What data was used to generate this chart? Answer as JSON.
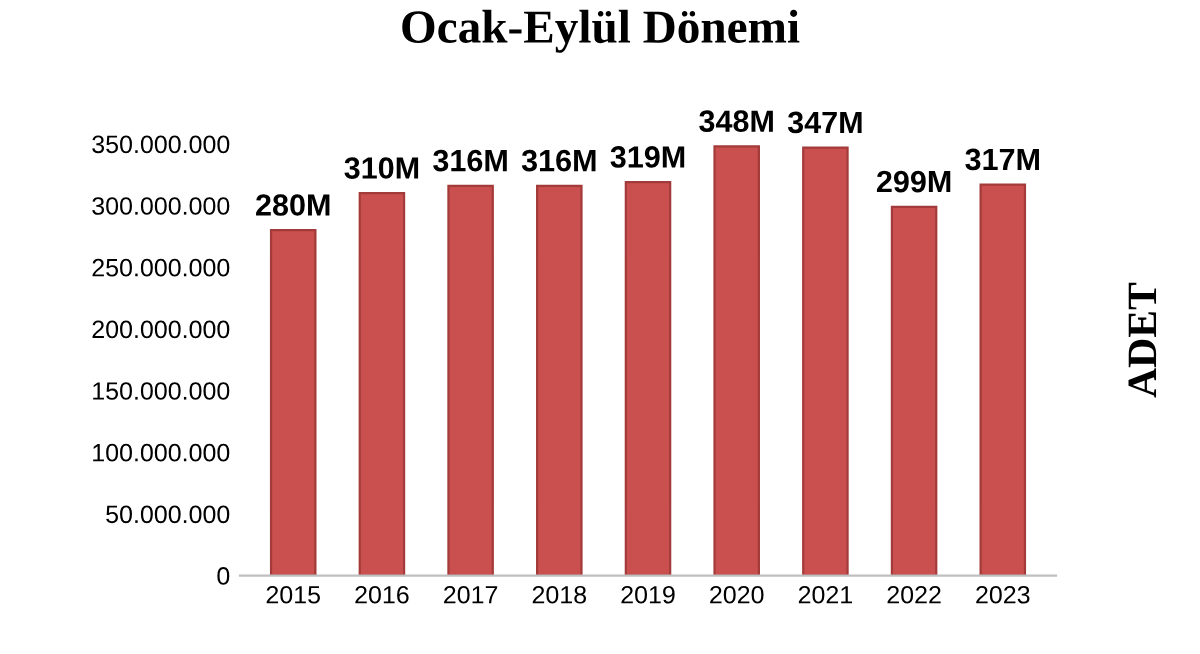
{
  "chart_data": {
    "type": "bar",
    "title": "Ocak-Eylül Dönemi",
    "ylabel": "ADET",
    "categories": [
      "2015",
      "2016",
      "2017",
      "2018",
      "2019",
      "2020",
      "2021",
      "2022",
      "2023"
    ],
    "values": [
      280000000,
      310000000,
      316000000,
      316000000,
      319000000,
      348000000,
      347000000,
      299000000,
      317000000
    ],
    "value_labels": [
      "280M",
      "310M",
      "316M",
      "316M",
      "319M",
      "348M",
      "347M",
      "299M",
      "317M"
    ],
    "color": "#c9504f",
    "ylim": [
      0,
      350000000
    ],
    "yticks": [
      {
        "value": 0,
        "label": "0"
      },
      {
        "value": 50000000,
        "label": "50.000.000"
      },
      {
        "value": 100000000,
        "label": "100.000.000"
      },
      {
        "value": 150000000,
        "label": "150.000.000"
      },
      {
        "value": 200000000,
        "label": "200.000.000"
      },
      {
        "value": 250000000,
        "label": "250.000.000"
      },
      {
        "value": 300000000,
        "label": "300.000.000"
      },
      {
        "value": 350000000,
        "label": "350.000.000"
      }
    ],
    "grid": false
  }
}
